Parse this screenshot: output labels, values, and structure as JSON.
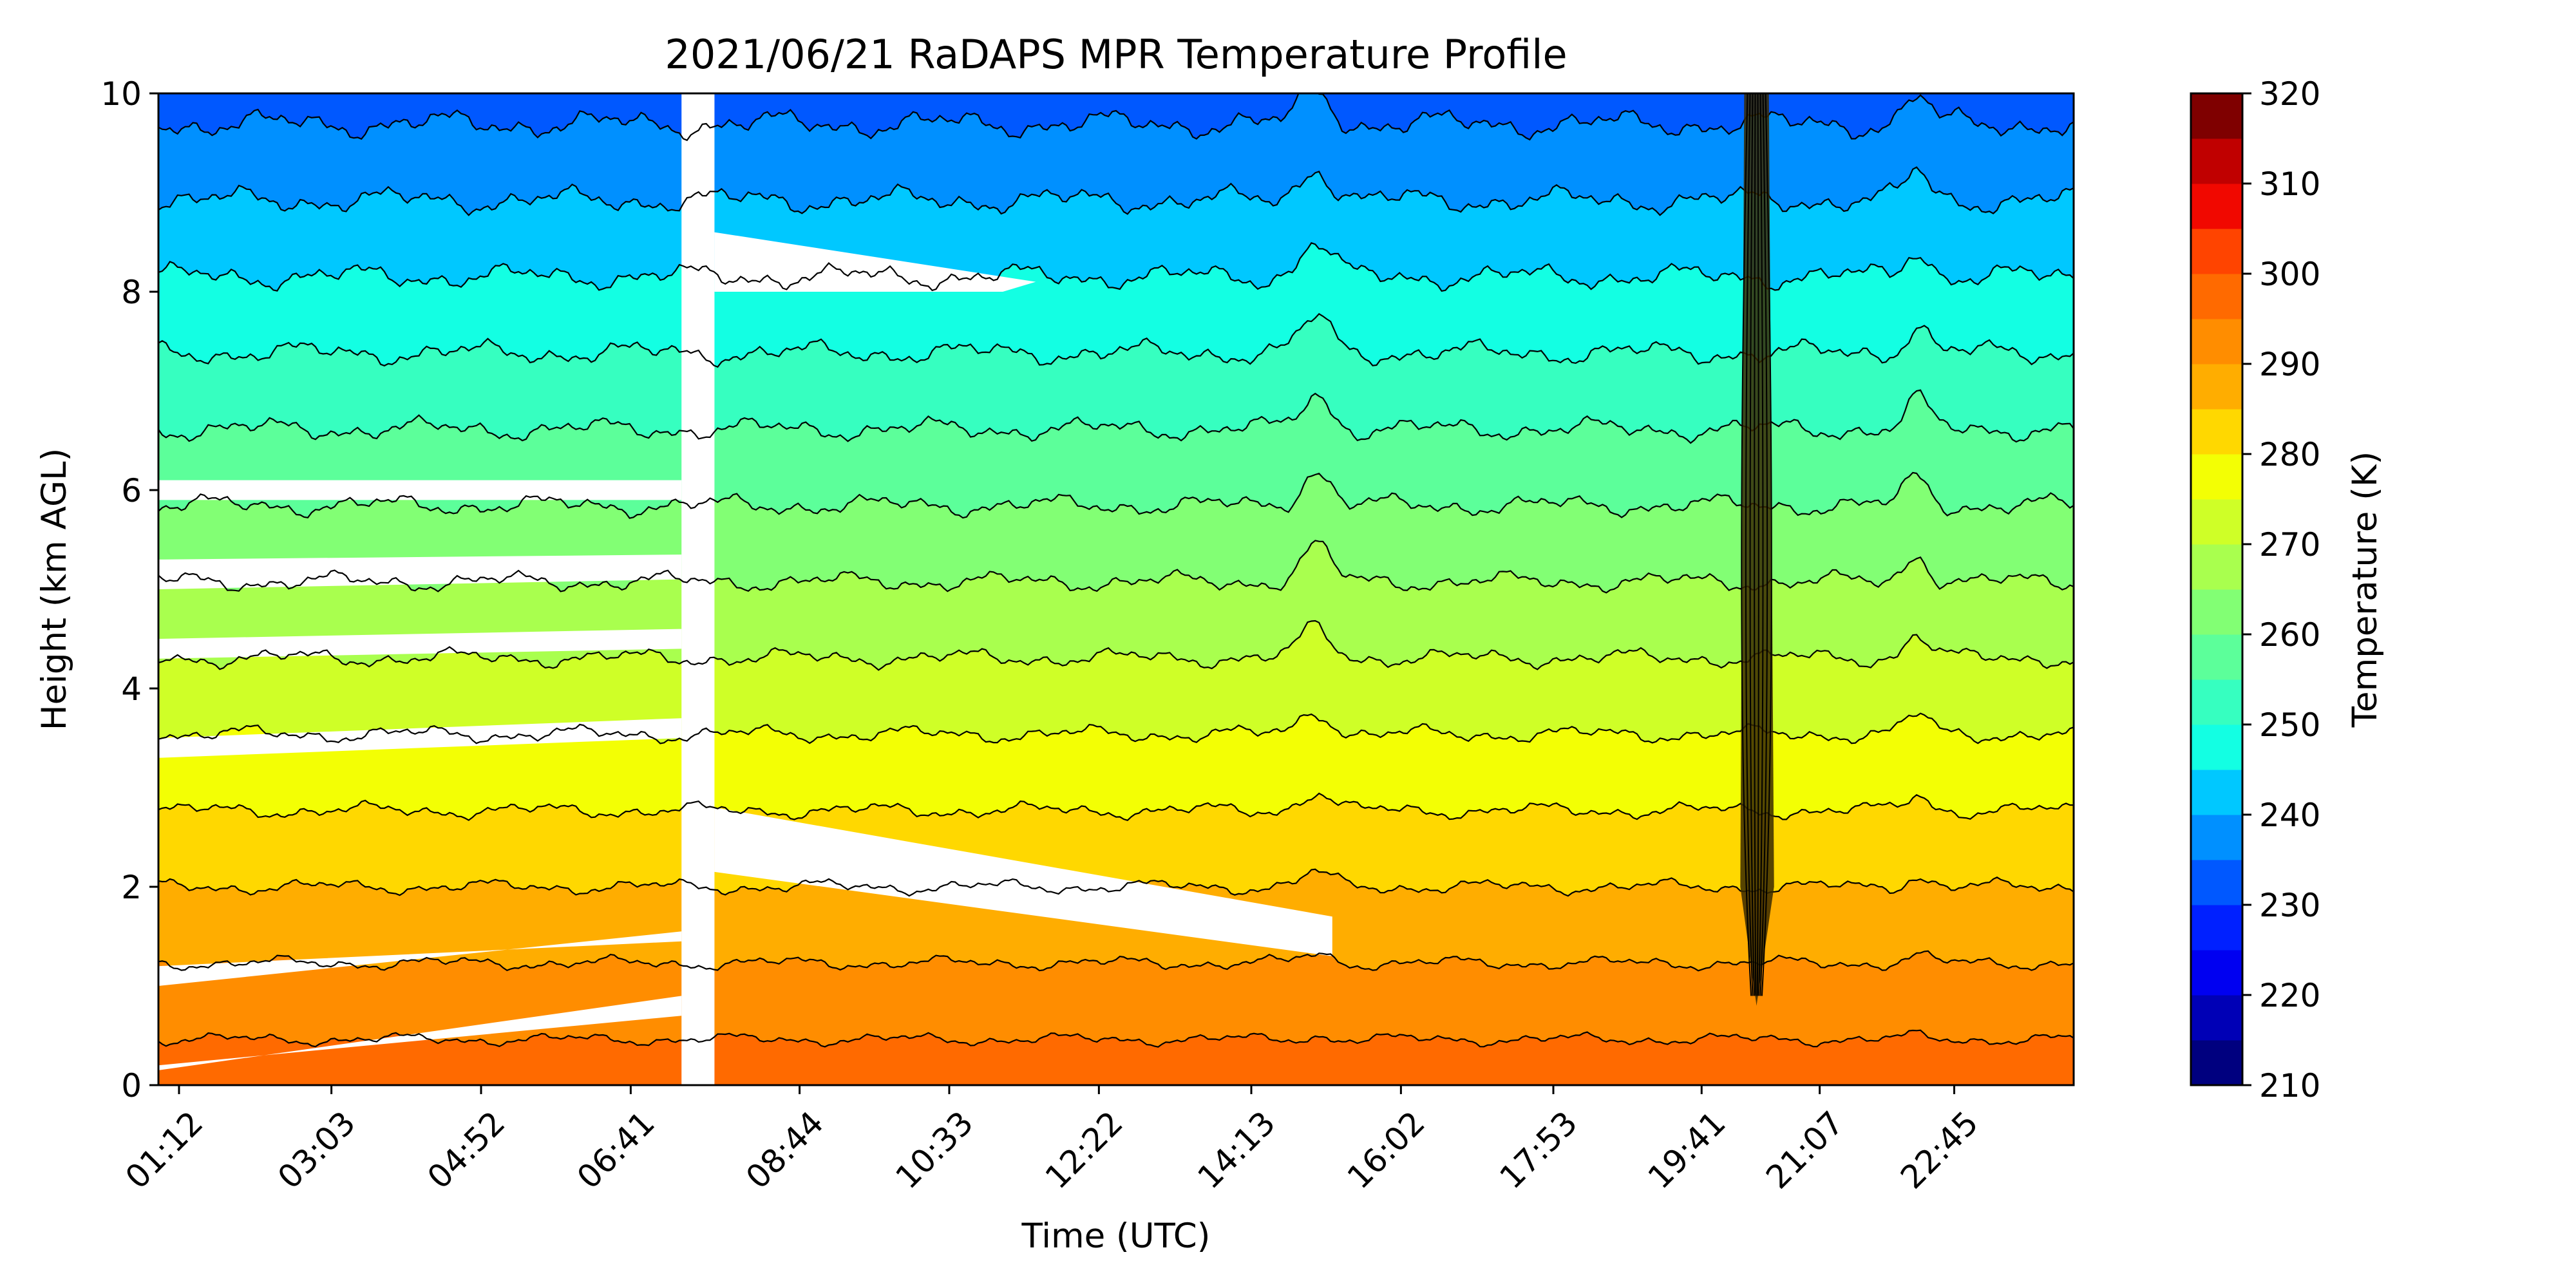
{
  "chart_data": {
    "type": "heatmap",
    "subtype": "filled-contour",
    "title": "2021/06/21 RaDAPS MPR Temperature Profile",
    "xlabel": "Time (UTC)",
    "ylabel": "Height (km AGL)",
    "colorbar_label": "Temperature (K)",
    "x_tick_labels": [
      "01:12",
      "03:03",
      "04:52",
      "06:41",
      "08:44",
      "10:33",
      "12:22",
      "14:13",
      "16:02",
      "17:53",
      "19:41",
      "21:07",
      "22:45"
    ],
    "x_tick_hours": [
      1.2,
      3.05,
      4.8667,
      6.6833,
      8.7333,
      10.55,
      12.3667,
      14.2167,
      16.0333,
      17.8833,
      19.6833,
      21.1167,
      22.75
    ],
    "x_range_hours": [
      0.95,
      24.2
    ],
    "y_ticks": [
      0,
      2,
      4,
      6,
      8,
      10
    ],
    "ylim": [
      0,
      10
    ],
    "colorbar_ticks": [
      210,
      220,
      230,
      240,
      250,
      260,
      270,
      280,
      290,
      300,
      310,
      320
    ],
    "color_levels": [
      210,
      215,
      220,
      225,
      230,
      235,
      240,
      245,
      250,
      255,
      260,
      265,
      270,
      275,
      280,
      285,
      290,
      295,
      300,
      305,
      310,
      315,
      320
    ],
    "level_colors": [
      "#00007f",
      "#0000b6",
      "#0000f1",
      "#0020ff",
      "#0058ff",
      "#0090ff",
      "#00c8ff",
      "#13ffe3",
      "#36ffc0",
      "#5cff9a",
      "#82ff74",
      "#a9ff4e",
      "#cfff27",
      "#f3ff04",
      "#ffd800",
      "#ffad00",
      "#ff8d00",
      "#ff6a00",
      "#ff4400",
      "#f10800",
      "#c00000",
      "#7f0000"
    ],
    "surface_temperature_K": 298,
    "lapse_rate_K_per_km": 6.5,
    "data_gap_hours": [
      7.3,
      7.7
    ],
    "precipitation_event_hours": [
      20.2,
      20.5
    ],
    "notes_visible": "contour lines every 5 K"
  }
}
